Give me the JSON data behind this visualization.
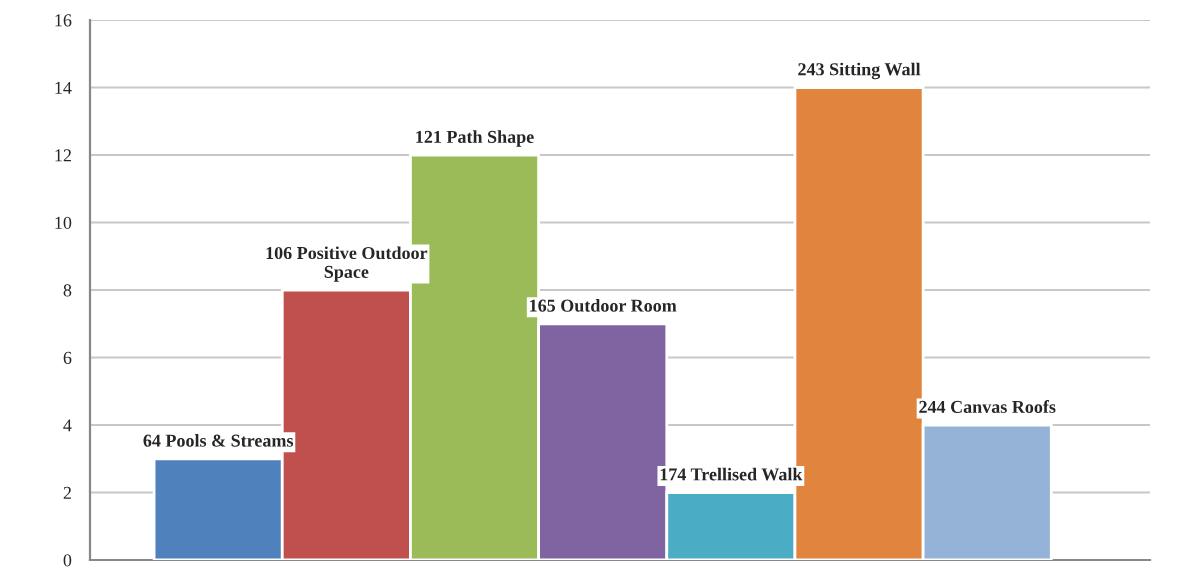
{
  "chart_data": {
    "type": "bar",
    "categories": [
      "64 Pools & Streams",
      "106 Positive Outdoor\nSpace",
      "121 Path Shape",
      "165 Outdoor Room",
      "174 Trellised Walk",
      "243 Sitting Wall",
      "244 Canvas Roofs"
    ],
    "values": [
      3,
      8,
      12,
      7,
      2,
      14,
      4
    ],
    "colors": [
      "#4f81bd",
      "#c0504d",
      "#9bbb59",
      "#8064a2",
      "#4bacc6",
      "#e0843e",
      "#95b3d7"
    ],
    "ylim": [
      0,
      16
    ],
    "yticks": [
      0,
      2,
      4,
      6,
      8,
      10,
      12,
      14,
      16
    ],
    "grid": "y"
  }
}
